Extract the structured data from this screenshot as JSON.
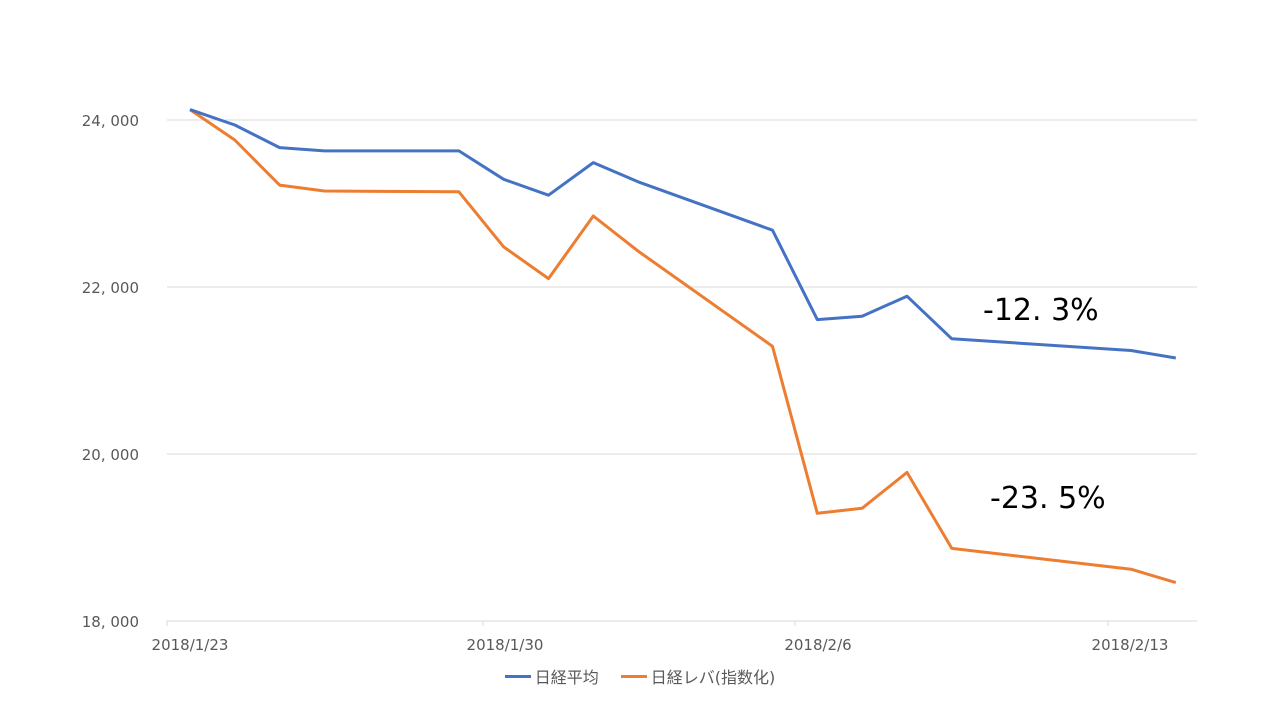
{
  "chart_data": {
    "type": "line",
    "title": "",
    "xlabel": "",
    "ylabel": "",
    "ylim": [
      18000,
      24000
    ],
    "yticks": [
      18000,
      20000,
      22000,
      24000
    ],
    "ytick_labels": [
      "18, 000",
      "20, 000",
      "22, 000",
      "24, 000"
    ],
    "xtick_labels": [
      "2018/1/23",
      "2018/1/30",
      "2018/2/6",
      "2018/2/13"
    ],
    "x": [
      "2018/1/23",
      "2018/1/24",
      "2018/1/25",
      "2018/1/26",
      "2018/1/29",
      "2018/1/30",
      "2018/1/31",
      "2018/2/1",
      "2018/2/2",
      "2018/2/5",
      "2018/2/6",
      "2018/2/7",
      "2018/2/8",
      "2018/2/9",
      "2018/2/13",
      "2018/2/14"
    ],
    "series": [
      {
        "name": "日経平均",
        "color": "#4472C4",
        "values": [
          24124,
          23940,
          23670,
          23630,
          23630,
          23290,
          23100,
          23490,
          23260,
          22680,
          21610,
          21650,
          21890,
          21380,
          21240,
          21150
        ]
      },
      {
        "name": "日経レバ(指数化)",
        "color": "#ED7D31",
        "values": [
          24124,
          23760,
          23220,
          23150,
          23140,
          22480,
          22100,
          22850,
          22430,
          21290,
          19290,
          19350,
          19780,
          18870,
          18620,
          18460
        ]
      }
    ],
    "annotations": [
      {
        "text": "-12. 3%",
        "series": "日経平均"
      },
      {
        "text": "-23. 5%",
        "series": "日経レバ(指数化)"
      }
    ],
    "grid": true,
    "legend_position": "bottom"
  },
  "legend": {
    "items": [
      {
        "label": "日経平均",
        "color": "#4472C4"
      },
      {
        "label": "日経レバ(指数化)",
        "color": "#ED7D31"
      }
    ]
  },
  "annotations": {
    "blue": "-12. 3%",
    "orange": "-23. 5%"
  },
  "axis": {
    "y": [
      "24, 000",
      "22, 000",
      "20, 000",
      "18, 000"
    ],
    "x": [
      "2018/1/23",
      "2018/1/30",
      "2018/2/6",
      "2018/2/13"
    ]
  }
}
